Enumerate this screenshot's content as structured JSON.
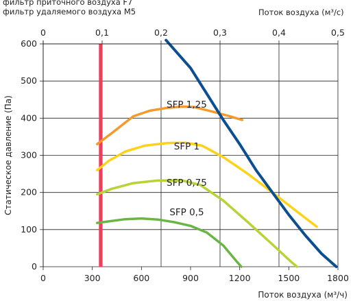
{
  "header": {
    "left_line1": "фильтр приточного воздуха F7",
    "left_line2": "фильтр удаляемого воздуха M5",
    "top_axis_label": "Поток воздуха (м³/с)"
  },
  "chart_data": {
    "type": "line",
    "title": "",
    "ylabel": "Статическое давление (Па)",
    "xlabel": "Поток воздуха (м³/ч)",
    "x2label": "Поток воздуха (м³/с)",
    "xlim": [
      0,
      1800
    ],
    "ylim": [
      0,
      600
    ],
    "x2lim": [
      0,
      0.5
    ],
    "xticks": [
      0,
      300,
      600,
      900,
      1200,
      1500,
      1800
    ],
    "yticks": [
      0,
      100,
      200,
      300,
      400,
      500,
      600
    ],
    "x2ticks": [
      "0",
      "0,1",
      "0,2",
      "0,3",
      "0,4",
      "0,5"
    ],
    "grid": true,
    "colors": {
      "max_curve": "#0b4f91",
      "min_limit": "#ef3e5b",
      "sfp_1_25": "#f39a2b",
      "sfp_1": "#ffd21a",
      "sfp_0_75": "#b7d335",
      "sfp_0_5": "#6ab545",
      "grid": "#231f20"
    },
    "series": [
      {
        "name": "SFP 1,25",
        "color": "#f39a2b",
        "label_at": [
          860,
          438
        ],
        "points": [
          [
            330,
            330
          ],
          [
            420,
            360
          ],
          [
            550,
            405
          ],
          [
            650,
            420
          ],
          [
            760,
            428
          ],
          [
            850,
            431
          ],
          [
            920,
            430
          ],
          [
            1030,
            418
          ],
          [
            1140,
            405
          ],
          [
            1215,
            395
          ]
        ]
      },
      {
        "name": "SFP 1",
        "color": "#ffd21a",
        "label_at": [
          860,
          325
        ],
        "points": [
          [
            330,
            260
          ],
          [
            400,
            285
          ],
          [
            500,
            310
          ],
          [
            620,
            326
          ],
          [
            760,
            333
          ],
          [
            870,
            334
          ],
          [
            970,
            326
          ],
          [
            1100,
            295
          ],
          [
            1250,
            250
          ],
          [
            1400,
            200
          ],
          [
            1560,
            145
          ],
          [
            1670,
            108
          ]
        ]
      },
      {
        "name": "SFP 0,75",
        "color": "#b7d335",
        "label_at": [
          860,
          227
        ],
        "points": [
          [
            330,
            195
          ],
          [
            420,
            210
          ],
          [
            550,
            225
          ],
          [
            700,
            232
          ],
          [
            850,
            232
          ],
          [
            960,
            220
          ],
          [
            1100,
            178
          ],
          [
            1250,
            120
          ],
          [
            1400,
            60
          ],
          [
            1510,
            15
          ],
          [
            1550,
            0
          ]
        ]
      },
      {
        "name": "SFP 0,5",
        "color": "#6ab545",
        "label_at": [
          860,
          148
        ],
        "points": [
          [
            330,
            118
          ],
          [
            400,
            122
          ],
          [
            500,
            128
          ],
          [
            600,
            130
          ],
          [
            700,
            127
          ],
          [
            800,
            120
          ],
          [
            900,
            110
          ],
          [
            1000,
            92
          ],
          [
            1100,
            57
          ],
          [
            1180,
            15
          ],
          [
            1210,
            0
          ]
        ]
      },
      {
        "points": [
          [
            750,
            610
          ],
          [
            900,
            535
          ],
          [
            1000,
            465
          ],
          [
            1100,
            395
          ],
          [
            1200,
            330
          ],
          [
            1300,
            260
          ],
          [
            1400,
            200
          ],
          [
            1500,
            140
          ],
          [
            1600,
            85
          ],
          [
            1700,
            35
          ],
          [
            1790,
            0
          ]
        ],
        "color": "#0b4f91"
      }
    ],
    "vertical_line": {
      "x": 330,
      "color": "#ef3e5b"
    }
  }
}
